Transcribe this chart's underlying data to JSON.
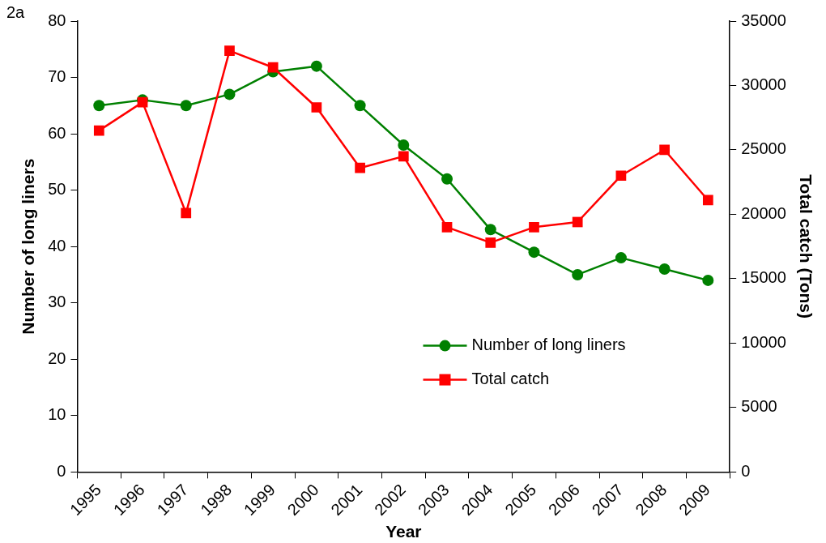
{
  "chart_data": {
    "type": "line",
    "annotations": [
      "2a"
    ],
    "xlabel": "Year",
    "ylabel": "Number of long liners",
    "y2label": "Total catch (Tons)",
    "categories": [
      "1995",
      "1996",
      "1997",
      "1998",
      "1999",
      "2000",
      "2001",
      "2002",
      "2003",
      "2004",
      "2005",
      "2006",
      "2007",
      "2008",
      "2009"
    ],
    "series": [
      {
        "name": "Number of long liners",
        "color": "#008000",
        "marker": "circle",
        "values": [
          65,
          66,
          65,
          67,
          71,
          72,
          65,
          58,
          52,
          43,
          39,
          35,
          38,
          36,
          34
        ]
      },
      {
        "name": "Total catch",
        "color": "#ff0000",
        "marker": "square",
        "axis": "y2",
        "values": [
          26500,
          28700,
          20100,
          32700,
          31400,
          28300,
          23600,
          24500,
          19000,
          17800,
          19000,
          19400,
          23000,
          25000,
          21100
        ]
      }
    ],
    "ylim": [
      0,
      80
    ],
    "yticks": [
      0,
      10,
      20,
      30,
      40,
      50,
      60,
      70,
      80
    ],
    "y2lim": [
      0,
      35000
    ],
    "y2ticks": [
      0,
      5000,
      10000,
      15000,
      20000,
      25000,
      30000,
      35000
    ],
    "grid": false,
    "legend": "right",
    "line_style": "solid"
  }
}
